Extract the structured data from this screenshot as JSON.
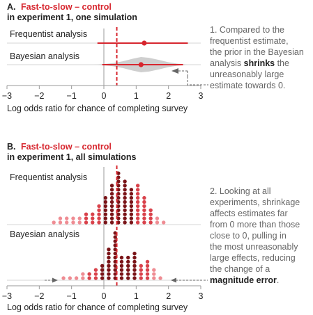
{
  "chart_data": [
    {
      "type": "scatter",
      "panel_letter": "A.",
      "title_accent": "Fast-to-slow – control",
      "title_rest": "in experiment 1, one simulation",
      "rows": [
        {
          "label": "Frequentist analysis",
          "estimate": 1.25,
          "ci": [
            -0.2,
            2.6
          ]
        },
        {
          "label": "Bayesian analysis",
          "estimate": 1.15,
          "ci": [
            -0.05,
            2.45
          ],
          "posterior_density": {
            "x": [
              -0.3,
              0.0,
              0.3,
              0.6,
              0.9,
              1.15,
              1.4,
              1.7,
              2.0,
              2.3,
              2.6
            ],
            "y": [
              0.02,
              0.08,
              0.22,
              0.45,
              0.78,
              1.0,
              0.9,
              0.62,
              0.32,
              0.12,
              0.02
            ]
          }
        }
      ],
      "reference_line": 0.4,
      "xlabel": "Log odds ratio for chance of completing survey",
      "xlim": [
        -3,
        3
      ],
      "xticks": [
        "−3",
        "−2",
        "−1",
        "0",
        "1",
        "2",
        "3"
      ],
      "annotation": {
        "lines": [
          "1. Compared to the",
          "frequentist estimate,",
          "the prior in the Bayesian"
        ],
        "line4_pre": "analysis ",
        "line4_strong": "shrinks",
        "line4_post": " the",
        "lines_after": [
          "unreasonably large",
          "estimate towards 0."
        ]
      }
    },
    {
      "type": "scatter",
      "panel_letter": "B.",
      "title_accent": "Fast-to-slow – control",
      "title_rest": "in experiment 1, all simulations",
      "rows": [
        {
          "label": "Frequentist analysis",
          "dot_stacks": [
            {
              "x": -1.55,
              "n": 1
            },
            {
              "x": -1.35,
              "n": 2
            },
            {
              "x": -1.15,
              "n": 2
            },
            {
              "x": -0.95,
              "n": 2
            },
            {
              "x": -0.75,
              "n": 2
            },
            {
              "x": -0.55,
              "n": 3
            },
            {
              "x": -0.35,
              "n": 3
            },
            {
              "x": -0.15,
              "n": 5
            },
            {
              "x": 0.05,
              "n": 7
            },
            {
              "x": 0.25,
              "n": 10
            },
            {
              "x": 0.45,
              "n": 13
            },
            {
              "x": 0.65,
              "n": 11
            },
            {
              "x": 0.85,
              "n": 9
            },
            {
              "x": 1.05,
              "n": 10
            },
            {
              "x": 1.25,
              "n": 7
            },
            {
              "x": 1.45,
              "n": 4
            },
            {
              "x": 1.65,
              "n": 2
            },
            {
              "x": 1.85,
              "n": 1
            }
          ]
        },
        {
          "label": "Bayesian analysis",
          "dot_stacks": [
            {
              "x": -1.25,
              "n": 1
            },
            {
              "x": -1.05,
              "n": 1
            },
            {
              "x": -0.85,
              "n": 1
            },
            {
              "x": -0.65,
              "n": 2
            },
            {
              "x": -0.45,
              "n": 2
            },
            {
              "x": -0.25,
              "n": 3
            },
            {
              "x": -0.05,
              "n": 4
            },
            {
              "x": 0.15,
              "n": 8
            },
            {
              "x": 0.35,
              "n": 12
            },
            {
              "x": 0.55,
              "n": 6
            },
            {
              "x": 0.75,
              "n": 6
            },
            {
              "x": 0.95,
              "n": 7
            },
            {
              "x": 1.15,
              "n": 4
            },
            {
              "x": 1.35,
              "n": 5
            },
            {
              "x": 1.55,
              "n": 3
            },
            {
              "x": 1.75,
              "n": 1
            }
          ]
        }
      ],
      "reference_line": 0.4,
      "xlabel": "Log odds ratio for chance of completing survey",
      "xlim": [
        -3,
        3
      ],
      "xticks": [
        "−3",
        "−2",
        "−1",
        "0",
        "1",
        "2",
        "3"
      ],
      "annotation": {
        "lines": [
          "2. Looking at all",
          "experiments, shrinkage",
          "affects estimates far",
          "from 0 more than those",
          "close to 0, pulling in",
          "the most unreasonably",
          "large effects, reducing",
          "the change of a"
        ],
        "last_strong": "magnitude error",
        "last_post": "."
      }
    }
  ],
  "colors": {
    "accent": "#d7262e",
    "dark_red": "#7a1418",
    "mid_red": "#d9424b",
    "light_red": "#ef8c93",
    "axis_grey": "#9a9a9a",
    "density_grey": "#cfcfcf",
    "row_line": "#d6d6d6",
    "note_grey": "#666666"
  }
}
